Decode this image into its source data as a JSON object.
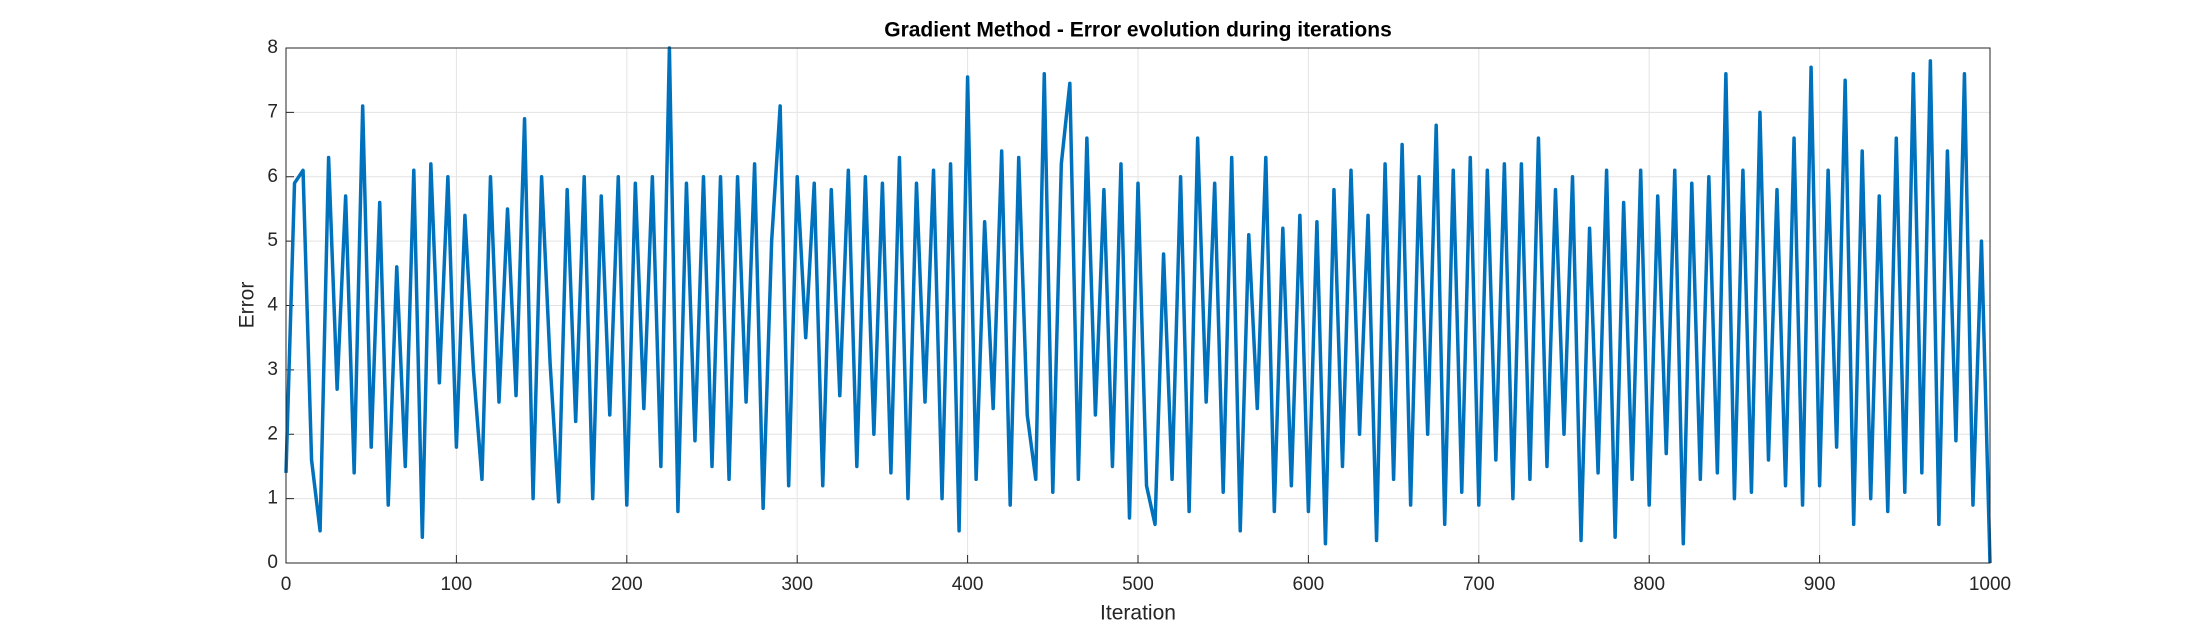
{
  "chart_data": {
    "type": "line",
    "title": "Gradient Method - Error evolution during iterations",
    "x_label": "Iteration",
    "y_label": "Error",
    "color": "#0072BD",
    "grid": true,
    "xlim": [
      0,
      1000
    ],
    "xticks": [
      0,
      100,
      200,
      300,
      400,
      500,
      600,
      700,
      800,
      900,
      1000
    ],
    "ylim": [
      0,
      8
    ],
    "yticks": [
      0,
      1,
      2,
      3,
      4,
      5,
      6,
      7,
      8
    ],
    "x": [
      0,
      5,
      10,
      15,
      20,
      25,
      30,
      35,
      40,
      45,
      50,
      55,
      60,
      65,
      70,
      75,
      80,
      85,
      90,
      95,
      100,
      105,
      110,
      115,
      120,
      125,
      130,
      135,
      140,
      145,
      150,
      155,
      160,
      165,
      170,
      175,
      180,
      185,
      190,
      195,
      200,
      205,
      210,
      215,
      220,
      225,
      230,
      235,
      240,
      245,
      250,
      255,
      260,
      265,
      270,
      275,
      280,
      285,
      290,
      295,
      300,
      305,
      310,
      315,
      320,
      325,
      330,
      335,
      340,
      345,
      350,
      355,
      360,
      365,
      370,
      375,
      380,
      385,
      390,
      395,
      400,
      405,
      410,
      415,
      420,
      425,
      430,
      435,
      440,
      445,
      450,
      455,
      460,
      465,
      470,
      475,
      480,
      485,
      490,
      495,
      500,
      505,
      510,
      515,
      520,
      525,
      530,
      535,
      540,
      545,
      550,
      555,
      560,
      565,
      570,
      575,
      580,
      585,
      590,
      595,
      600,
      605,
      610,
      615,
      620,
      625,
      630,
      635,
      640,
      645,
      650,
      655,
      660,
      665,
      670,
      675,
      680,
      685,
      690,
      695,
      700,
      705,
      710,
      715,
      720,
      725,
      730,
      735,
      740,
      745,
      750,
      755,
      760,
      765,
      770,
      775,
      780,
      785,
      790,
      795,
      800,
      805,
      810,
      815,
      820,
      825,
      830,
      835,
      840,
      845,
      850,
      855,
      860,
      865,
      870,
      875,
      880,
      885,
      890,
      895,
      900,
      905,
      910,
      915,
      920,
      925,
      930,
      935,
      940,
      945,
      950,
      955,
      960,
      965,
      970,
      975,
      980,
      985,
      990,
      995,
      1000
    ],
    "values": [
      1.4,
      5.9,
      6.1,
      1.6,
      0.5,
      6.3,
      2.7,
      5.7,
      1.4,
      7.1,
      1.8,
      5.6,
      0.9,
      4.6,
      1.5,
      6.1,
      0.4,
      6.2,
      2.8,
      6.0,
      1.8,
      5.4,
      3.0,
      1.3,
      6.0,
      2.5,
      5.5,
      2.6,
      6.9,
      1.0,
      6.0,
      3.1,
      0.95,
      5.8,
      2.2,
      6.0,
      1.0,
      5.7,
      2.3,
      6.0,
      0.9,
      5.9,
      2.4,
      6.0,
      1.5,
      8.0,
      0.8,
      5.9,
      1.9,
      6.0,
      1.5,
      6.0,
      1.3,
      6.0,
      2.5,
      6.2,
      0.85,
      5.0,
      7.1,
      1.2,
      6.0,
      3.5,
      5.9,
      1.2,
      5.8,
      2.6,
      6.1,
      1.5,
      6.0,
      2.0,
      5.9,
      1.4,
      6.3,
      1.0,
      5.9,
      2.5,
      6.1,
      1.0,
      6.2,
      0.5,
      7.55,
      1.3,
      5.3,
      2.4,
      6.4,
      0.9,
      6.3,
      2.3,
      1.3,
      7.6,
      1.1,
      6.2,
      7.45,
      1.3,
      6.6,
      2.3,
      5.8,
      1.5,
      6.2,
      0.7,
      5.9,
      1.2,
      0.6,
      4.8,
      1.3,
      6.0,
      0.8,
      6.6,
      2.5,
      5.9,
      1.1,
      6.3,
      0.5,
      5.1,
      2.4,
      6.3,
      0.8,
      5.2,
      1.2,
      5.4,
      0.8,
      5.3,
      0.3,
      5.8,
      1.5,
      6.1,
      2.0,
      5.4,
      0.35,
      6.2,
      1.3,
      6.5,
      0.9,
      6.0,
      2.0,
      6.8,
      0.6,
      6.1,
      1.1,
      6.3,
      0.9,
      6.1,
      1.6,
      6.2,
      1.0,
      6.2,
      1.3,
      6.6,
      1.5,
      5.8,
      2.0,
      6.0,
      0.35,
      5.2,
      1.4,
      6.1,
      0.4,
      5.6,
      1.3,
      6.1,
      0.9,
      5.7,
      1.7,
      6.1,
      0.3,
      5.9,
      1.3,
      6.0,
      1.4,
      7.6,
      1.0,
      6.1,
      1.1,
      7.0,
      1.6,
      5.8,
      1.2,
      6.6,
      0.9,
      7.7,
      1.2,
      6.1,
      1.8,
      7.5,
      0.6,
      6.4,
      1.0,
      5.7,
      0.8,
      6.6,
      1.1,
      7.6,
      1.4,
      7.8,
      0.6,
      6.4,
      1.9,
      7.6,
      0.9,
      5.0,
      0.0
    ]
  }
}
